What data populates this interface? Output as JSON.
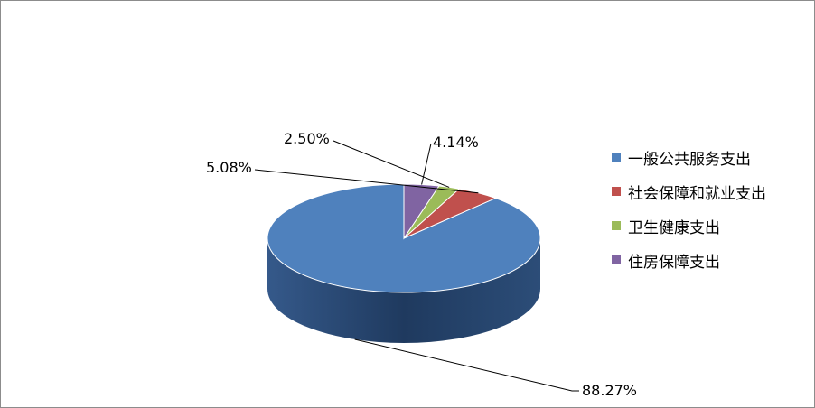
{
  "chart_data": {
    "type": "pie",
    "categories": [
      "一般公共服务支出",
      "社会保障和就业支出",
      "卫生健康支出",
      "住房保障支出"
    ],
    "values": [
      88.27,
      5.08,
      2.5,
      4.14
    ],
    "data_labels": [
      "88.27%",
      "5.08%",
      "2.50%",
      "4.14%"
    ],
    "colors": [
      "#4F81BD",
      "#C0504D",
      "#9BBB59",
      "#8064A2"
    ],
    "style": "3d",
    "legend_position": "right"
  }
}
